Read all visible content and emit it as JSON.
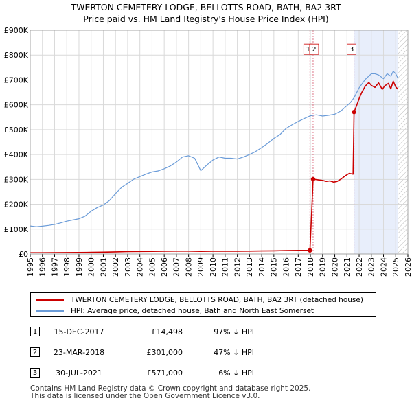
{
  "chart_data": {
    "type": "line",
    "title": "TWERTON CEMETERY LODGE, BELLOTTS ROAD, BATH, BA2 3RT",
    "subtitle": "Price paid vs. HM Land Registry's House Price Index (HPI)",
    "xlabel": "",
    "ylabel": "",
    "xlim": [
      1995,
      2026
    ],
    "ylim": [
      0,
      900000
    ],
    "x_ticks": [
      "1995",
      "1996",
      "1997",
      "1998",
      "1999",
      "2000",
      "2001",
      "2002",
      "2003",
      "2004",
      "2005",
      "2006",
      "2007",
      "2008",
      "2009",
      "2010",
      "2011",
      "2012",
      "2013",
      "2014",
      "2015",
      "2016",
      "2017",
      "2018",
      "2019",
      "2020",
      "2021",
      "2022",
      "2023",
      "2024",
      "2025",
      "2026"
    ],
    "y_ticks": [
      {
        "value": 0,
        "label": "£0"
      },
      {
        "value": 100000,
        "label": "£100K"
      },
      {
        "value": 200000,
        "label": "£200K"
      },
      {
        "value": 300000,
        "label": "£300K"
      },
      {
        "value": 400000,
        "label": "£400K"
      },
      {
        "value": 500000,
        "label": "£500K"
      },
      {
        "value": 600000,
        "label": "£600K"
      },
      {
        "value": 700000,
        "label": "£700K"
      },
      {
        "value": 800000,
        "label": "£800K"
      },
      {
        "value": 900000,
        "label": "£900K"
      }
    ],
    "grid": true,
    "series": [
      {
        "name": "TWERTON CEMETERY LODGE, BELLOTTS ROAD, BATH, BA2 3RT (detached house)",
        "color": "#cc0000",
        "points": [
          [
            1995.0,
            4900
          ],
          [
            1996.0,
            5000
          ],
          [
            1997.0,
            5300
          ],
          [
            1998.0,
            5700
          ],
          [
            1999.0,
            6100
          ],
          [
            2000.0,
            6700
          ],
          [
            2001.0,
            7400
          ],
          [
            2002.0,
            8500
          ],
          [
            2003.0,
            9600
          ],
          [
            2004.0,
            10300
          ],
          [
            2005.0,
            10500
          ],
          [
            2006.0,
            11000
          ],
          [
            2007.0,
            11700
          ],
          [
            2008.0,
            11600
          ],
          [
            2009.0,
            10600
          ],
          [
            2010.0,
            11300
          ],
          [
            2011.0,
            11200
          ],
          [
            2012.0,
            11300
          ],
          [
            2013.0,
            11600
          ],
          [
            2014.0,
            12200
          ],
          [
            2015.0,
            12800
          ],
          [
            2016.0,
            13700
          ],
          [
            2017.0,
            14400
          ],
          [
            2017.96,
            14498
          ],
          [
            2018.22,
            301000
          ],
          [
            2018.5,
            299000
          ],
          [
            2018.8,
            297000
          ],
          [
            2019.0,
            296000
          ],
          [
            2019.3,
            292000
          ],
          [
            2019.6,
            294000
          ],
          [
            2019.9,
            289000
          ],
          [
            2020.2,
            292000
          ],
          [
            2020.5,
            301000
          ],
          [
            2020.8,
            312000
          ],
          [
            2021.0,
            319000
          ],
          [
            2021.2,
            324000
          ],
          [
            2021.5,
            321000
          ],
          [
            2021.58,
            571000
          ],
          [
            2021.8,
            598000
          ],
          [
            2022.0,
            625000
          ],
          [
            2022.2,
            648000
          ],
          [
            2022.5,
            675000
          ],
          [
            2022.8,
            690000
          ],
          [
            2023.0,
            678000
          ],
          [
            2023.3,
            670000
          ],
          [
            2023.6,
            688000
          ],
          [
            2023.9,
            662000
          ],
          [
            2024.1,
            676000
          ],
          [
            2024.4,
            686000
          ],
          [
            2024.6,
            664000
          ],
          [
            2024.8,
            695000
          ],
          [
            2025.0,
            672000
          ],
          [
            2025.2,
            662000
          ]
        ]
      },
      {
        "name": "HPI: Average price, detached house, Bath and North East Somerset",
        "color": "#6a9bd8",
        "points": [
          [
            1995.0,
            113000
          ],
          [
            1995.5,
            110000
          ],
          [
            1996.0,
            112000
          ],
          [
            1996.5,
            115000
          ],
          [
            1997.0,
            119000
          ],
          [
            1997.5,
            125000
          ],
          [
            1998.0,
            132000
          ],
          [
            1998.5,
            137000
          ],
          [
            1999.0,
            142000
          ],
          [
            1999.5,
            152000
          ],
          [
            2000.0,
            172000
          ],
          [
            2000.5,
            187000
          ],
          [
            2001.0,
            197000
          ],
          [
            2001.5,
            215000
          ],
          [
            2002.0,
            243000
          ],
          [
            2002.5,
            268000
          ],
          [
            2003.0,
            284000
          ],
          [
            2003.5,
            301000
          ],
          [
            2004.0,
            311000
          ],
          [
            2004.5,
            321000
          ],
          [
            2005.0,
            330000
          ],
          [
            2005.5,
            334000
          ],
          [
            2006.0,
            343000
          ],
          [
            2006.5,
            354000
          ],
          [
            2007.0,
            370000
          ],
          [
            2007.5,
            390000
          ],
          [
            2008.0,
            395000
          ],
          [
            2008.5,
            385000
          ],
          [
            2009.0,
            335000
          ],
          [
            2009.5,
            358000
          ],
          [
            2010.0,
            378000
          ],
          [
            2010.5,
            390000
          ],
          [
            2011.0,
            385000
          ],
          [
            2011.5,
            385000
          ],
          [
            2012.0,
            382000
          ],
          [
            2012.5,
            390000
          ],
          [
            2013.0,
            400000
          ],
          [
            2013.5,
            412000
          ],
          [
            2014.0,
            428000
          ],
          [
            2014.5,
            445000
          ],
          [
            2015.0,
            465000
          ],
          [
            2015.5,
            480000
          ],
          [
            2016.0,
            505000
          ],
          [
            2016.5,
            520000
          ],
          [
            2017.0,
            533000
          ],
          [
            2017.5,
            545000
          ],
          [
            2018.0,
            556000
          ],
          [
            2018.5,
            560000
          ],
          [
            2019.0,
            555000
          ],
          [
            2019.5,
            558000
          ],
          [
            2020.0,
            562000
          ],
          [
            2020.5,
            575000
          ],
          [
            2021.0,
            597000
          ],
          [
            2021.3,
            610000
          ],
          [
            2021.6,
            630000
          ],
          [
            2022.0,
            668000
          ],
          [
            2022.5,
            702000
          ],
          [
            2023.0,
            725000
          ],
          [
            2023.3,
            725000
          ],
          [
            2023.6,
            720000
          ],
          [
            2024.0,
            705000
          ],
          [
            2024.3,
            725000
          ],
          [
            2024.6,
            715000
          ],
          [
            2024.8,
            735000
          ],
          [
            2025.0,
            725000
          ],
          [
            2025.2,
            705000
          ]
        ]
      }
    ],
    "sale_markers": [
      {
        "label": "1",
        "x": 2017.96
      },
      {
        "label": "2",
        "x": 2018.22
      },
      {
        "label": "3",
        "x": 2021.58
      }
    ],
    "marker_label_y": [
      825000,
      825000,
      825000
    ],
    "shaded_regions": [
      {
        "from": 2021.58,
        "to": 2025.2
      },
      {
        "from": 2025.2,
        "to": 2026.0,
        "hatched": true
      }
    ]
  },
  "legend": {
    "items": [
      {
        "label": "TWERTON CEMETERY LODGE, BELLOTTS ROAD, BATH, BA2 3RT (detached house)",
        "color": "#cc0000"
      },
      {
        "label": "HPI: Average price, detached house, Bath and North East Somerset",
        "color": "#6a9bd8"
      }
    ]
  },
  "sales": [
    {
      "num": "1",
      "date": "15-DEC-2017",
      "price": "£14,498",
      "hpi": "97% ↓ HPI"
    },
    {
      "num": "2",
      "date": "23-MAR-2018",
      "price": "£301,000",
      "hpi": "47% ↓ HPI"
    },
    {
      "num": "3",
      "date": "30-JUL-2021",
      "price": "£571,000",
      "hpi": "6% ↓ HPI"
    }
  ],
  "footer": {
    "line1": "Contains HM Land Registry data © Crown copyright and database right 2025.",
    "line2": "This data is licensed under the Open Government Licence v3.0."
  }
}
